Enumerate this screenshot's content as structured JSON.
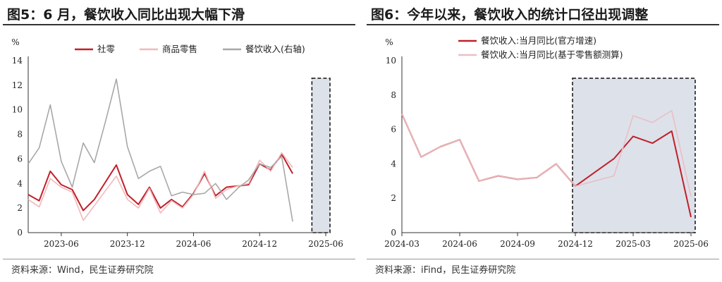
{
  "left": {
    "title": "图5：6 月，餐饮收入同比出现大幅下滑",
    "source": "资料来源：Wind，民生证券研究院"
  },
  "right": {
    "title": "图6：今年以来，餐饮收入的统计口径出现调整",
    "source": "资料来源：iFind，民生证券研究院"
  },
  "chart_data": [
    {
      "type": "line",
      "ylabel": "%",
      "ylim": [
        0,
        14
      ],
      "yticks": [
        "0",
        "2",
        "4",
        "6",
        "8",
        "10",
        "12",
        "14"
      ],
      "xtick_labels": [
        "2023-06",
        "2023-12",
        "2024-06",
        "2024-12",
        "2025-06"
      ],
      "x": [
        "2023-03",
        "2023-04",
        "2023-05",
        "2023-06",
        "2023-07",
        "2023-08",
        "2023-09",
        "2023-10",
        "2023-11",
        "2023-12",
        "2024-01",
        "2024-02",
        "2024-03",
        "2024-04",
        "2024-05",
        "2024-06",
        "2024-07",
        "2024-08",
        "2024-09",
        "2024-10",
        "2024-11",
        "2024-12",
        "2025-01",
        "2025-02",
        "2025-03",
        "2025-04",
        "2025-05",
        "2025-06"
      ],
      "highlight_range": [
        "2025-05",
        "2025-06"
      ],
      "legend_position": "top",
      "series": [
        {
          "name": "社零",
          "color": "#c0202a",
          "values": [
            3.1,
            2.6,
            5.0,
            3.9,
            3.5,
            1.8,
            2.7,
            4.1,
            5.5,
            3.1,
            2.3,
            3.7,
            2.0,
            2.7,
            2.1,
            3.2,
            4.8,
            3.0,
            3.7,
            3.8,
            3.9,
            5.6,
            5.1,
            6.4,
            4.8,
            null,
            null,
            null
          ]
        },
        {
          "name": "商品零售",
          "color": "#f2b8bc",
          "values": [
            2.7,
            2.1,
            4.4,
            3.7,
            3.3,
            1.0,
            2.2,
            3.4,
            4.6,
            2.7,
            2.0,
            3.6,
            1.6,
            2.6,
            2.0,
            3.1,
            5.0,
            2.8,
            3.5,
            3.8,
            4.0,
            5.9,
            5.0,
            6.5,
            5.3,
            null,
            null,
            null
          ]
        },
        {
          "name": "餐饮收入(右轴)",
          "color": "#a8a8a8",
          "values": [
            5.6,
            6.9,
            10.4,
            5.8,
            3.7,
            7.3,
            5.7,
            9.0,
            12.5,
            7.0,
            4.4,
            5.0,
            5.4,
            3.0,
            3.3,
            3.1,
            3.2,
            4.0,
            2.7,
            3.6,
            4.3,
            5.6,
            5.3,
            6.2,
            0.9,
            null,
            null,
            null
          ]
        }
      ]
    },
    {
      "type": "line",
      "ylabel": "%",
      "ylim": [
        0,
        10
      ],
      "yticks": [
        "0",
        "2",
        "4",
        "6",
        "8",
        "10"
      ],
      "xtick_labels": [
        "2024-03",
        "2024-06",
        "2024-09",
        "2024-12",
        "2025-03",
        "2025-06"
      ],
      "x": [
        "2024-03",
        "2024-04",
        "2024-05",
        "2024-06",
        "2024-07",
        "2024-08",
        "2024-09",
        "2024-10",
        "2024-11",
        "2024-12",
        "2025-01",
        "2025-02",
        "2025-03",
        "2025-04",
        "2025-05",
        "2025-06"
      ],
      "highlight_range": [
        "2024-12",
        "2025-06"
      ],
      "legend_position": "top",
      "series": [
        {
          "name": "餐饮收入:当月同比(官方增速)",
          "color": "#c0202a",
          "values": [
            6.9,
            4.4,
            5.0,
            5.4,
            3.0,
            3.3,
            3.1,
            3.2,
            4.0,
            2.7,
            3.5,
            4.3,
            5.6,
            5.2,
            5.9,
            0.9
          ]
        },
        {
          "name": "餐饮收入:当月同比(基于零售额测算)",
          "color": "#e8c0c4",
          "values": [
            6.9,
            4.4,
            5.0,
            5.4,
            3.0,
            3.3,
            3.1,
            3.2,
            4.0,
            2.7,
            3.0,
            3.3,
            6.8,
            6.4,
            7.1,
            2.1
          ]
        }
      ]
    }
  ]
}
